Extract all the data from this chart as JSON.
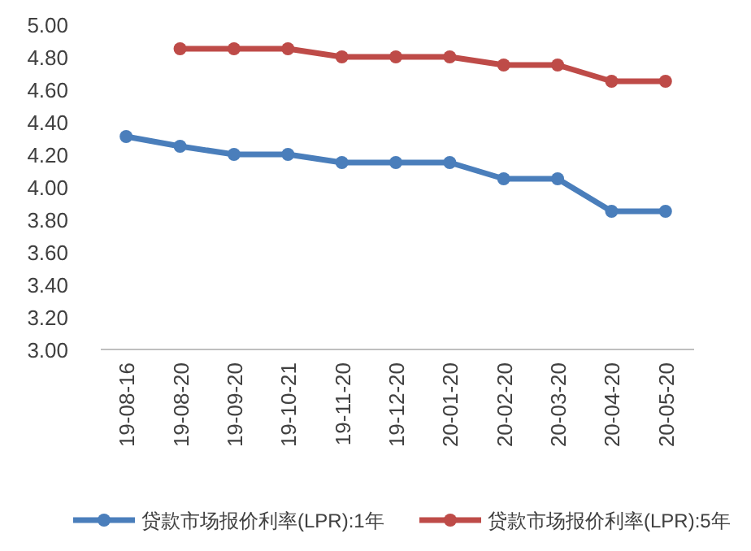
{
  "chart_data": {
    "type": "line",
    "categories": [
      "19-08-16",
      "19-08-20",
      "19-09-20",
      "19-10-21",
      "19-11-20",
      "19-12-20",
      "20-01-20",
      "20-02-20",
      "20-03-20",
      "20-04-20",
      "20-05-20"
    ],
    "series": [
      {
        "name": "贷款市场报价利率(LPR):1年",
        "color": "#4a7ebb",
        "values": [
          4.31,
          4.25,
          4.2,
          4.2,
          4.15,
          4.15,
          4.15,
          4.05,
          4.05,
          3.85,
          3.85
        ]
      },
      {
        "name": "贷款市场报价利率(LPR):5年",
        "color": "#be4b48",
        "values": [
          null,
          4.85,
          4.85,
          4.85,
          4.8,
          4.8,
          4.8,
          4.75,
          4.75,
          4.65,
          4.65
        ]
      }
    ],
    "ylim": [
      3.0,
      5.0
    ],
    "yticks": [
      {
        "value": 3.0,
        "label": "3.00"
      },
      {
        "value": 3.2,
        "label": "3.20"
      },
      {
        "value": 3.4,
        "label": "3.40"
      },
      {
        "value": 3.6,
        "label": "3.60"
      },
      {
        "value": 3.8,
        "label": "3.80"
      },
      {
        "value": 4.0,
        "label": "4.00"
      },
      {
        "value": 4.2,
        "label": "4.20"
      },
      {
        "value": 4.4,
        "label": "4.40"
      },
      {
        "value": 4.6,
        "label": "4.60"
      },
      {
        "value": 4.8,
        "label": "4.80"
      },
      {
        "value": 5.0,
        "label": "5.00"
      }
    ],
    "legend": "bottom",
    "marker": "circle",
    "line_style": "solid"
  }
}
